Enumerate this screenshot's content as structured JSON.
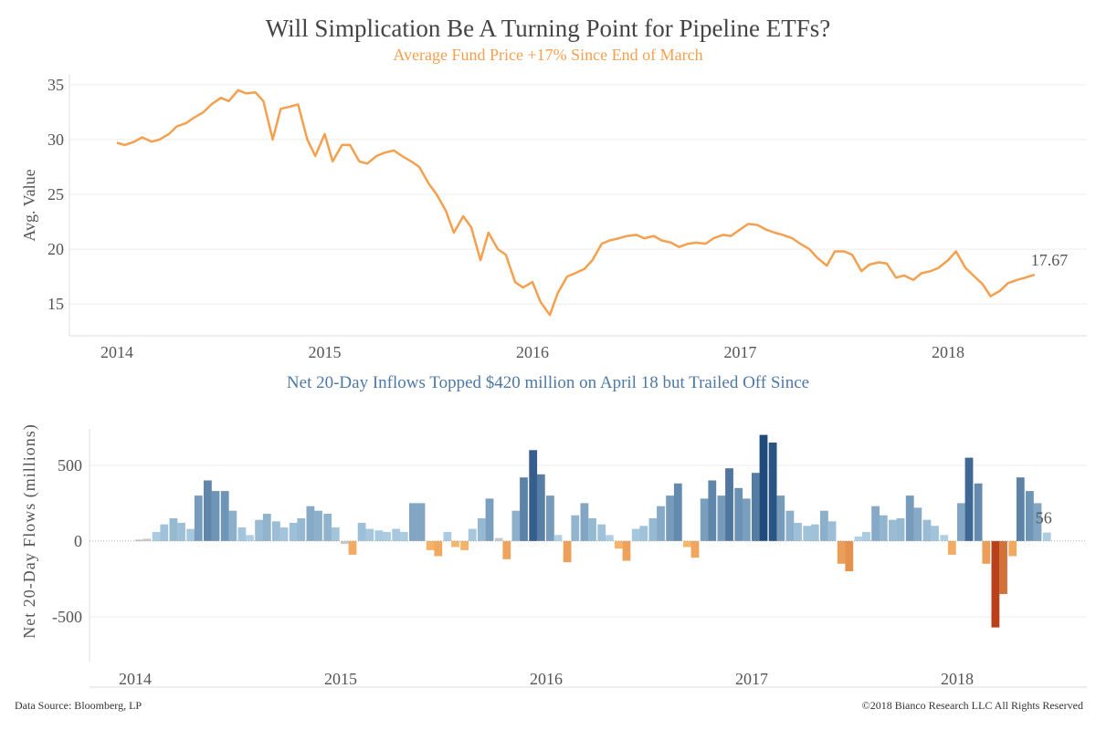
{
  "title": "Will Simplication Be A Turning Point for Pipeline ETFs?",
  "footer": {
    "source": "Data Source: Bloomberg, LP",
    "copyright": "©2018 Bianco Research LLC   All Rights Reserved"
  },
  "colors": {
    "price_line": "#f4a04f",
    "inflow_light": "#b7d7ea",
    "inflow_dark": "#1f4a7c",
    "outflow_light": "#fdbf6f",
    "outflow_dark": "#b8401a",
    "neutral": "#c8c8c8"
  },
  "chart_data": [
    {
      "type": "line",
      "subtitle": "Average Fund Price +17% Since End of March",
      "ylabel": "Avg. Value",
      "xlabel": "",
      "x_ticks": [
        "2014",
        "2015",
        "2016",
        "2017",
        "2018"
      ],
      "y_ticks": [
        15,
        20,
        25,
        30,
        35
      ],
      "ylim": [
        12.1,
        35.9
      ],
      "grid": true,
      "end_label": "17.67",
      "sampling": "1st and 15th of each month",
      "values_by_month": {
        "2014-01": [
          29.7,
          29.5
        ],
        "2014-02": [
          29.8,
          30.2
        ],
        "2014-03": [
          29.8,
          30.0
        ],
        "2014-04": [
          30.5,
          31.2
        ],
        "2014-05": [
          31.5,
          32.0
        ],
        "2014-06": [
          32.5,
          33.2
        ],
        "2014-07": [
          33.8,
          33.5
        ],
        "2014-08": [
          34.5,
          34.2
        ],
        "2014-09": [
          34.3,
          33.5
        ],
        "2014-10": [
          30.0,
          32.8
        ],
        "2014-11": [
          33.0,
          33.2
        ],
        "2014-12": [
          30.0,
          28.5
        ],
        "2015-01": [
          30.5,
          28.0
        ],
        "2015-02": [
          29.5,
          29.5
        ],
        "2015-03": [
          28.0,
          27.8
        ],
        "2015-04": [
          28.5,
          28.8
        ],
        "2015-05": [
          29.0,
          28.5
        ],
        "2015-06": [
          28.0,
          27.5
        ],
        "2015-07": [
          26.0,
          25.0
        ],
        "2015-08": [
          23.5,
          21.5
        ],
        "2015-09": [
          23.0,
          22.0
        ],
        "2015-10": [
          19.0,
          21.5
        ],
        "2015-11": [
          20.0,
          19.5
        ],
        "2015-12": [
          17.0,
          16.5
        ],
        "2016-01": [
          17.0,
          15.2
        ],
        "2016-02": [
          14.0,
          16.0
        ],
        "2016-03": [
          17.5,
          17.8
        ],
        "2016-04": [
          18.2,
          19.0
        ],
        "2016-05": [
          20.5,
          20.8
        ],
        "2016-06": [
          21.0,
          21.2
        ],
        "2016-07": [
          21.3,
          21.0
        ],
        "2016-08": [
          21.2,
          20.8
        ],
        "2016-09": [
          20.6,
          20.2
        ],
        "2016-10": [
          20.5,
          20.6
        ],
        "2016-11": [
          20.5,
          21.0
        ],
        "2016-12": [
          21.3,
          21.2
        ],
        "2017-01": [
          21.8,
          22.3
        ],
        "2017-02": [
          22.2,
          21.8
        ],
        "2017-03": [
          21.5,
          21.3
        ],
        "2017-04": [
          21.0,
          20.5
        ],
        "2017-05": [
          20.0,
          19.2
        ],
        "2017-06": [
          18.5,
          19.8
        ],
        "2017-07": [
          19.8,
          19.5
        ],
        "2017-08": [
          18.0,
          18.6
        ],
        "2017-09": [
          18.8,
          18.7
        ],
        "2017-10": [
          17.4,
          17.6
        ],
        "2017-11": [
          17.2,
          17.8
        ],
        "2017-12": [
          18.0,
          18.3
        ],
        "2018-01": [
          19.0,
          19.8
        ],
        "2018-02": [
          18.3,
          17.6
        ],
        "2018-03": [
          16.8,
          15.7
        ],
        "2018-04": [
          16.2,
          16.9
        ],
        "2018-05": [
          17.2,
          17.4
        ],
        "2018-06": [
          17.67
        ]
      }
    },
    {
      "type": "bar",
      "subtitle": "Net 20-Day Inflows Topped $420 million on April 18 but Trailed Off Since",
      "ylabel": "Net 20-Day Flows (millions)",
      "xlabel": "",
      "x_ticks": [
        "2014",
        "2015",
        "2016",
        "2017",
        "2018"
      ],
      "y_ticks": [
        -500,
        0,
        500
      ],
      "ylim": [
        -795,
        740
      ],
      "grid": true,
      "end_label": "56",
      "sampling": "1st and 15th of each month",
      "values_by_month": {
        "2014-01": [
          10,
          15
        ],
        "2014-02": [
          60,
          110
        ],
        "2014-03": [
          150,
          120
        ],
        "2014-04": [
          80,
          300
        ],
        "2014-05": [
          400,
          330
        ],
        "2014-06": [
          330,
          200
        ],
        "2014-07": [
          90,
          40
        ],
        "2014-08": [
          140,
          180
        ],
        "2014-09": [
          130,
          90
        ],
        "2014-10": [
          120,
          150
        ],
        "2014-11": [
          230,
          200
        ],
        "2014-12": [
          180,
          90
        ],
        "2015-01": [
          -20,
          -90
        ],
        "2015-02": [
          120,
          80
        ],
        "2015-03": [
          70,
          60
        ],
        "2015-04": [
          80,
          60
        ],
        "2015-05": [
          250,
          250
        ],
        "2015-06": [
          -60,
          -100
        ],
        "2015-07": [
          60,
          -40
        ],
        "2015-08": [
          -60,
          80
        ],
        "2015-09": [
          150,
          280
        ],
        "2015-10": [
          20,
          -120
        ],
        "2015-11": [
          200,
          420
        ],
        "2015-12": [
          600,
          440
        ],
        "2016-01": [
          300,
          40
        ],
        "2016-02": [
          -140,
          170
        ],
        "2016-03": [
          250,
          150
        ],
        "2016-04": [
          110,
          40
        ],
        "2016-05": [
          -50,
          -130
        ],
        "2016-06": [
          80,
          100
        ],
        "2016-07": [
          150,
          230
        ],
        "2016-08": [
          300,
          380
        ],
        "2016-09": [
          -40,
          -110
        ],
        "2016-10": [
          280,
          400
        ],
        "2016-11": [
          300,
          480
        ],
        "2016-12": [
          350,
          280
        ],
        "2017-01": [
          450,
          700
        ],
        "2017-02": [
          650,
          300
        ],
        "2017-03": [
          200,
          120
        ],
        "2017-04": [
          100,
          110
        ],
        "2017-05": [
          200,
          130
        ],
        "2017-06": [
          -150,
          -200
        ],
        "2017-07": [
          30,
          60
        ],
        "2017-08": [
          230,
          170
        ],
        "2017-09": [
          140,
          150
        ],
        "2017-10": [
          300,
          220
        ],
        "2017-11": [
          140,
          100
        ],
        "2017-12": [
          40,
          -90
        ],
        "2018-01": [
          250,
          550
        ],
        "2018-02": [
          380,
          -150
        ],
        "2018-03": [
          -570,
          -350
        ],
        "2018-04": [
          -100,
          420
        ],
        "2018-05": [
          330,
          250
        ],
        "2018-06": [
          56
        ]
      }
    }
  ]
}
